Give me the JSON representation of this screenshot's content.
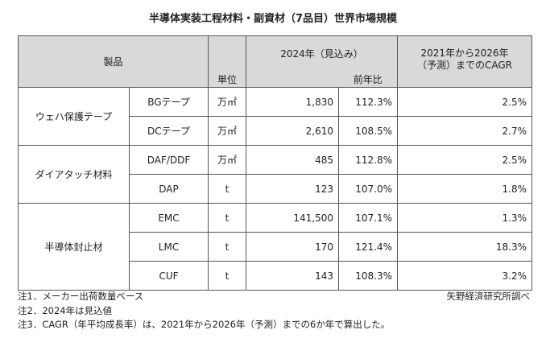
{
  "title": "半導体実装工程材料・副資材（7品目）世界市場規模",
  "table": {
    "header": {
      "product": "製品",
      "unit": "単位",
      "volume": "2024年（見込み）",
      "yoy": "前年比",
      "cagr": "2021年から2026年（予測）までのCAGR"
    },
    "groups": [
      {
        "name": "ウェハ保護テープ",
        "rows": [
          {
            "product": "BGテープ",
            "unit": "万㎡",
            "volume": "1,830",
            "yoy": "112.3%",
            "cagr": "2.5%"
          },
          {
            "product": "DCテープ",
            "unit": "万㎡",
            "volume": "2,610",
            "yoy": "108.5%",
            "cagr": "2.7%"
          }
        ]
      },
      {
        "name": "ダイアタッチ材料",
        "rows": [
          {
            "product": "DAF/DDF",
            "unit": "万㎡",
            "volume": "485",
            "yoy": "112.8%",
            "cagr": "2.5%"
          },
          {
            "product": "DAP",
            "unit": "t",
            "volume": "123",
            "yoy": "107.0%",
            "cagr": "1.8%"
          }
        ]
      },
      {
        "name": "半導体封止材",
        "rows": [
          {
            "product": "EMC",
            "unit": "t",
            "volume": "141,500",
            "yoy": "107.1%",
            "cagr": "1.3%"
          },
          {
            "product": "LMC",
            "unit": "t",
            "volume": "170",
            "yoy": "121.4%",
            "cagr": "18.3%"
          },
          {
            "product": "CUF",
            "unit": "t",
            "volume": "143",
            "yoy": "108.3%",
            "cagr": "3.2%"
          }
        ]
      }
    ]
  },
  "notes": [
    "注1．メーカー出荷数量ベース",
    "注2．2024年は見込値",
    "注3．CAGR（年平均成長率）は、2021年から2026年（予測）までの6か年で算出した。"
  ],
  "source": "矢野経済研究所調べ"
}
